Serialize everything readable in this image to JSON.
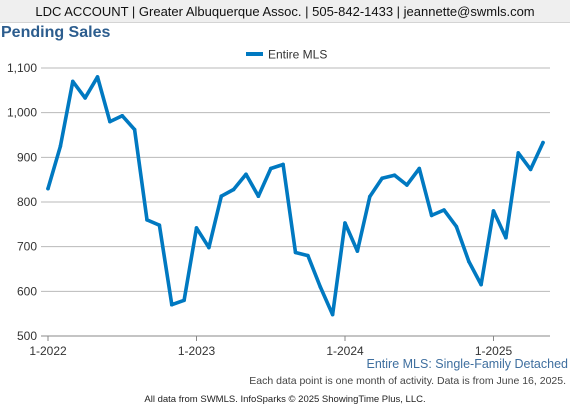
{
  "header": {
    "text": "LDC ACCOUNT | Greater Albuquerque Assoc. | 505-842-1433 | jeannette@swmls.com"
  },
  "chart_data": {
    "type": "line",
    "title": "Pending Sales",
    "subtitle": "Entire MLS: Single-Family Detached",
    "xlabel": "",
    "ylabel": "",
    "x": [
      "2022-01",
      "2022-02",
      "2022-03",
      "2022-04",
      "2022-05",
      "2022-06",
      "2022-07",
      "2022-08",
      "2022-09",
      "2022-10",
      "2022-11",
      "2022-12",
      "2023-01",
      "2023-02",
      "2023-03",
      "2023-04",
      "2023-05",
      "2023-06",
      "2023-07",
      "2023-08",
      "2023-09",
      "2023-10",
      "2023-11",
      "2023-12",
      "2024-01",
      "2024-02",
      "2024-03",
      "2024-04",
      "2024-05",
      "2024-06",
      "2024-07",
      "2024-08",
      "2024-09",
      "2024-10",
      "2024-11",
      "2024-12",
      "2025-01",
      "2025-02",
      "2025-03",
      "2025-04",
      "2025-05"
    ],
    "x_tick_labels": [
      {
        "index": 0,
        "label": "1-2022"
      },
      {
        "index": 12,
        "label": "1-2023"
      },
      {
        "index": 24,
        "label": "1-2024"
      },
      {
        "index": 36,
        "label": "1-2025"
      }
    ],
    "series": [
      {
        "name": "Entire MLS",
        "color": "#0079c1",
        "values": [
          830,
          925,
          1070,
          1033,
          1080,
          980,
          993,
          962,
          760,
          748,
          570,
          580,
          742,
          698,
          813,
          828,
          862,
          813,
          875,
          884,
          687,
          680,
          610,
          548,
          753,
          690,
          812,
          853,
          860,
          838,
          875,
          770,
          782,
          745,
          667,
          615,
          780,
          720,
          910,
          873,
          933
        ]
      }
    ],
    "ylim": [
      500,
      1100
    ],
    "yticks": [
      500,
      600,
      700,
      800,
      900,
      1000,
      1100
    ],
    "ytick_labels": [
      "500",
      "600",
      "700",
      "800",
      "900",
      "1,000",
      "1,100"
    ],
    "grid": true,
    "legend_placement": "top-center"
  },
  "footnote": "Each data point is one month of activity. Data is from June 16, 2025.",
  "source": "All data from SWMLS. InfoSparks © 2025 ShowingTime Plus, LLC."
}
